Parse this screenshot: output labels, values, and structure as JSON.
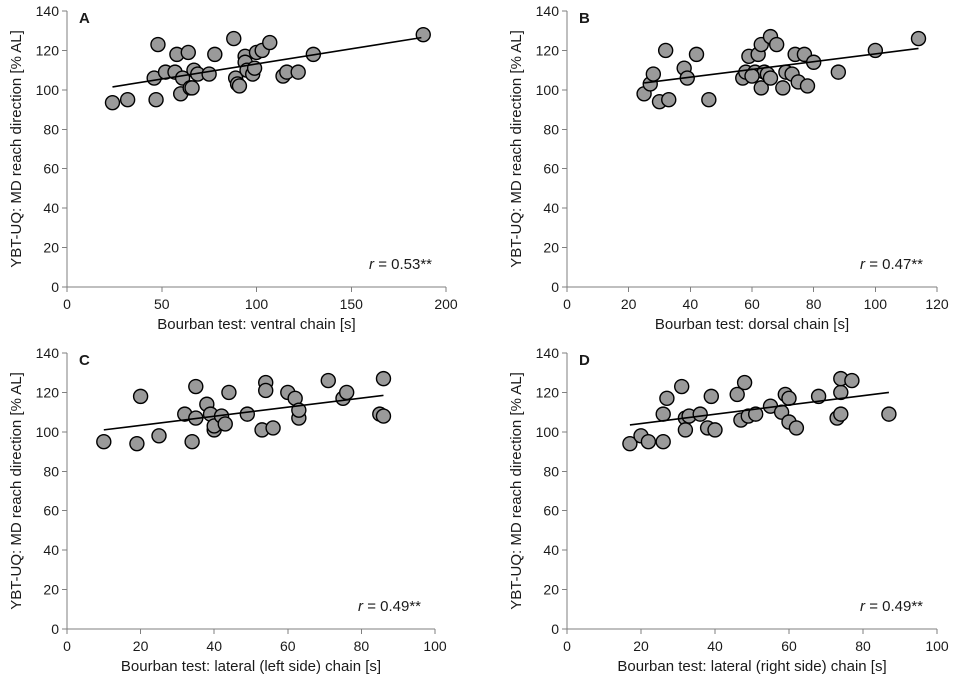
{
  "chart_data": [
    {
      "type": "scatter",
      "panel_label": "A",
      "title": "",
      "xlabel": "Bourban test: ventral chain [s]",
      "ylabel": "YBT-UQ: MD reach direction [% AL]",
      "xlim": [
        0,
        200
      ],
      "ylim": [
        0,
        140
      ],
      "xticks": [
        "0",
        "50",
        "100",
        "150",
        "200"
      ],
      "yticks": [
        "0",
        "20",
        "40",
        "60",
        "80",
        "100",
        "120",
        "140"
      ],
      "grid": false,
      "annotation": {
        "prefix": "r",
        "text": " = 0.53**"
      },
      "trendline": {
        "x": [
          24,
          187
        ],
        "y": [
          101.5,
          126.5
        ]
      },
      "points": [
        [
          24,
          93.5
        ],
        [
          32,
          95
        ],
        [
          46,
          106
        ],
        [
          47,
          95
        ],
        [
          48,
          123
        ],
        [
          52,
          109
        ],
        [
          57,
          109
        ],
        [
          58,
          118
        ],
        [
          60,
          98
        ],
        [
          61,
          106
        ],
        [
          64,
          119
        ],
        [
          65,
          101
        ],
        [
          66,
          101
        ],
        [
          67,
          110
        ],
        [
          69,
          108
        ],
        [
          75,
          108
        ],
        [
          78,
          118
        ],
        [
          88,
          126
        ],
        [
          89,
          106
        ],
        [
          90,
          103
        ],
        [
          91,
          102
        ],
        [
          94,
          117
        ],
        [
          94,
          114
        ],
        [
          95,
          110
        ],
        [
          98,
          108
        ],
        [
          99,
          111
        ],
        [
          100,
          119
        ],
        [
          103,
          120
        ],
        [
          107,
          124
        ],
        [
          114,
          107
        ],
        [
          116,
          109
        ],
        [
          122,
          109
        ],
        [
          130,
          118
        ],
        [
          188,
          128
        ]
      ]
    },
    {
      "type": "scatter",
      "panel_label": "B",
      "title": "",
      "xlabel": "Bourban test: dorsal chain [s]",
      "ylabel": "YBT-UQ: MD reach direction [% AL]",
      "xlim": [
        0,
        120
      ],
      "ylim": [
        0,
        140
      ],
      "xticks": [
        "0",
        "20",
        "40",
        "60",
        "80",
        "100",
        "120"
      ],
      "yticks": [
        "0",
        "20",
        "40",
        "60",
        "80",
        "100",
        "120",
        "140"
      ],
      "grid": false,
      "annotation": {
        "prefix": "r",
        "text": " = 0.47**"
      },
      "trendline": {
        "x": [
          25,
          114
        ],
        "y": [
          103.5,
          121
        ]
      },
      "points": [
        [
          25,
          98
        ],
        [
          27,
          103
        ],
        [
          28,
          108
        ],
        [
          30,
          94
        ],
        [
          32,
          120
        ],
        [
          33,
          95
        ],
        [
          38,
          111
        ],
        [
          39,
          106
        ],
        [
          42,
          118
        ],
        [
          46,
          95
        ],
        [
          57,
          106
        ],
        [
          58,
          109
        ],
        [
          59,
          117
        ],
        [
          61,
          109
        ],
        [
          62,
          118
        ],
        [
          63,
          123
        ],
        [
          64,
          109
        ],
        [
          65,
          108
        ],
        [
          66,
          127
        ],
        [
          68,
          123
        ],
        [
          70,
          101
        ],
        [
          71,
          109
        ],
        [
          73,
          108
        ],
        [
          74,
          118
        ],
        [
          75,
          104
        ],
        [
          77,
          118
        ],
        [
          78,
          102
        ],
        [
          80,
          114
        ],
        [
          88,
          109
        ],
        [
          100,
          120
        ],
        [
          114,
          126
        ],
        [
          63,
          101
        ],
        [
          66,
          106
        ],
        [
          60,
          107
        ]
      ]
    },
    {
      "type": "scatter",
      "panel_label": "C",
      "title": "",
      "xlabel": "Bourban test: lateral (left side) chain [s]",
      "ylabel": "YBT-UQ: MD reach direction [% AL]",
      "xlim": [
        0,
        100
      ],
      "ylim": [
        0,
        140
      ],
      "xticks": [
        "0",
        "20",
        "40",
        "60",
        "80",
        "100"
      ],
      "yticks": [
        "0",
        "20",
        "40",
        "60",
        "80",
        "100",
        "120",
        "140"
      ],
      "grid": false,
      "annotation": {
        "prefix": "r",
        "text": " = 0.49**"
      },
      "trendline": {
        "x": [
          10,
          86
        ],
        "y": [
          101,
          118.5
        ]
      },
      "points": [
        [
          10,
          95
        ],
        [
          19,
          94
        ],
        [
          20,
          118
        ],
        [
          25,
          98
        ],
        [
          32,
          109
        ],
        [
          34,
          95
        ],
        [
          35,
          123
        ],
        [
          35,
          107
        ],
        [
          38,
          114
        ],
        [
          39,
          109
        ],
        [
          40,
          101
        ],
        [
          40,
          103
        ],
        [
          42,
          108
        ],
        [
          43,
          104
        ],
        [
          44,
          120
        ],
        [
          49,
          109
        ],
        [
          53,
          101
        ],
        [
          54,
          125
        ],
        [
          54,
          121
        ],
        [
          56,
          102
        ],
        [
          60,
          120
        ],
        [
          62,
          117
        ],
        [
          63,
          107
        ],
        [
          63,
          111
        ],
        [
          71,
          126
        ],
        [
          75,
          117
        ],
        [
          76,
          120
        ],
        [
          85,
          109
        ],
        [
          86,
          108
        ],
        [
          86,
          127
        ]
      ]
    },
    {
      "type": "scatter",
      "panel_label": "D",
      "title": "",
      "xlabel": "Bourban test: lateral (right side) chain [s]",
      "ylabel": "YBT-UQ: MD reach direction [% AL]",
      "xlim": [
        0,
        100
      ],
      "ylim": [
        0,
        140
      ],
      "xticks": [
        "0",
        "20",
        "40",
        "60",
        "80",
        "100"
      ],
      "yticks": [
        "0",
        "20",
        "40",
        "60",
        "80",
        "100",
        "120",
        "140"
      ],
      "grid": false,
      "annotation": {
        "prefix": "r",
        "text": " = 0.49**"
      },
      "trendline": {
        "x": [
          17,
          87
        ],
        "y": [
          103.5,
          120
        ]
      },
      "points": [
        [
          17,
          94
        ],
        [
          20,
          98
        ],
        [
          22,
          95
        ],
        [
          26,
          95
        ],
        [
          26,
          109
        ],
        [
          27,
          117
        ],
        [
          31,
          123
        ],
        [
          32,
          107
        ],
        [
          32,
          101
        ],
        [
          33,
          108
        ],
        [
          36,
          109
        ],
        [
          38,
          102
        ],
        [
          39,
          118
        ],
        [
          40,
          101
        ],
        [
          46,
          119
        ],
        [
          47,
          106
        ],
        [
          48,
          125
        ],
        [
          49,
          108
        ],
        [
          51,
          109
        ],
        [
          55,
          113
        ],
        [
          58,
          110
        ],
        [
          59,
          119
        ],
        [
          60,
          105
        ],
        [
          60,
          117
        ],
        [
          62,
          102
        ],
        [
          68,
          118
        ],
        [
          73,
          107
        ],
        [
          74,
          109
        ],
        [
          74,
          120
        ],
        [
          74,
          127
        ],
        [
          77,
          126
        ],
        [
          87,
          109
        ]
      ]
    }
  ]
}
